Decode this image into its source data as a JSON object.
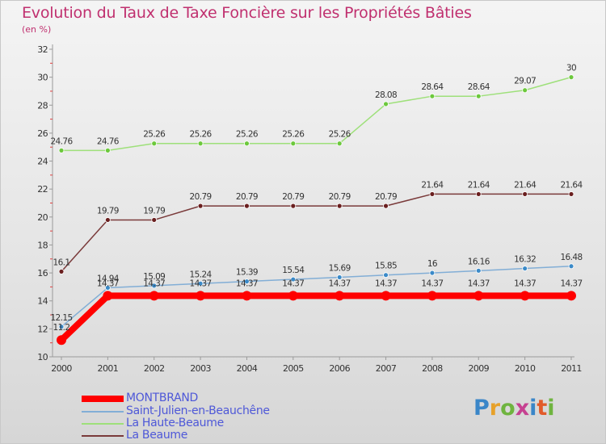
{
  "header": {
    "title": "Evolution du Taux de Taxe Foncière sur les Propriétés Bâties",
    "subtitle": "(en %)"
  },
  "logo": {
    "text": "Proxiti"
  },
  "colors": {
    "title": "#c0306f",
    "axis": "#9a9a9a",
    "tick_label": "#333333",
    "value_label": "#333333",
    "legend_text": "#4e58d8"
  },
  "chart_data": {
    "type": "line",
    "title": "Evolution du Taux de Taxe Foncière sur les Propriétés Bâties",
    "ylabel": "(en %)",
    "xlabel": "",
    "x": [
      "2000",
      "2001",
      "2002",
      "2003",
      "2004",
      "2005",
      "2006",
      "2007",
      "2008",
      "2009",
      "2010",
      "2011"
    ],
    "ylim": [
      10,
      32
    ],
    "yticks": [
      10,
      12,
      14,
      16,
      18,
      20,
      22,
      24,
      26,
      28,
      30,
      32
    ],
    "grid": false,
    "legend_position": "bottom-left",
    "series": [
      {
        "name": "MONTBRAND",
        "color": "#ff0000",
        "marker_color": "#ff0000",
        "line_width": 8,
        "marker_radius": 6,
        "values": [
          11.2,
          14.37,
          14.37,
          14.37,
          14.37,
          14.37,
          14.37,
          14.37,
          14.37,
          14.37,
          14.37,
          14.37
        ],
        "labels": [
          "11.2",
          "14.37",
          "14.37",
          "14.37",
          "14.37",
          "14.37",
          "14.37",
          "14.37",
          "14.37",
          "14.37",
          "14.37",
          "14.37"
        ]
      },
      {
        "name": "Saint-Julien-en-Beauchêne",
        "color": "#82aed6",
        "marker_color": "#3b8ac8",
        "line_width": 1.5,
        "marker_radius": 3,
        "values": [
          12.15,
          14.94,
          15.09,
          15.24,
          15.39,
          15.54,
          15.69,
          15.85,
          16,
          16.16,
          16.32,
          16.48
        ],
        "labels": [
          "12.15",
          "14.94",
          "15.09",
          "15.24",
          "15.39",
          "15.54",
          "15.69",
          "15.85",
          "16",
          "16.16",
          "16.32",
          "16.48"
        ]
      },
      {
        "name": "La Haute-Beaume",
        "color": "#9ee07a",
        "marker_color": "#6cc83c",
        "line_width": 1.5,
        "marker_radius": 3,
        "values": [
          24.76,
          24.76,
          25.26,
          25.26,
          25.26,
          25.26,
          25.26,
          28.08,
          28.64,
          28.64,
          29.07,
          30
        ],
        "labels": [
          "24.76",
          "24.76",
          "25.26",
          "25.26",
          "25.26",
          "25.26",
          "25.26",
          "28.08",
          "28.64",
          "28.64",
          "29.07",
          "30"
        ]
      },
      {
        "name": "La Beaume",
        "color": "#7a3a3a",
        "marker_color": "#6a1f1f",
        "line_width": 1.5,
        "marker_radius": 3,
        "values": [
          16.1,
          19.79,
          19.79,
          20.79,
          20.79,
          20.79,
          20.79,
          20.79,
          21.64,
          21.64,
          21.64,
          21.64
        ],
        "labels": [
          "16.1",
          "19.79",
          "19.79",
          "20.79",
          "20.79",
          "20.79",
          "20.79",
          "20.79",
          "21.64",
          "21.64",
          "21.64",
          "21.64"
        ]
      }
    ]
  }
}
